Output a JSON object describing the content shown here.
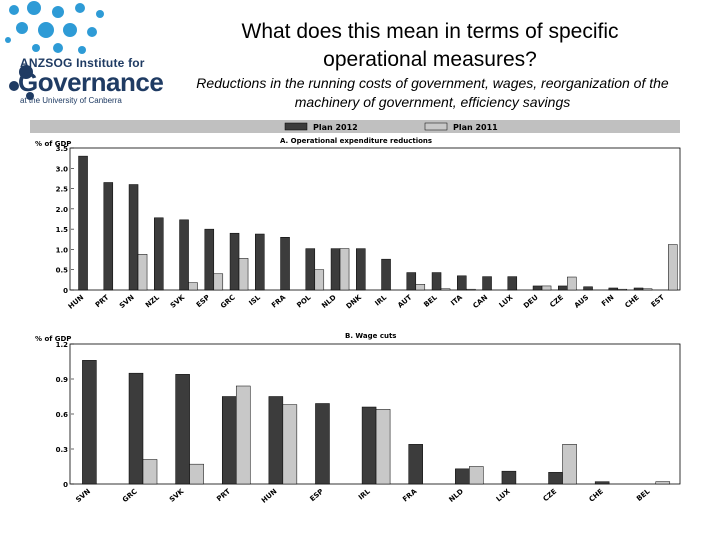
{
  "logo": {
    "name": "ANZSOG Institute for",
    "big": "Governance",
    "sub": "at the University of Canberra"
  },
  "header": {
    "title": "What does this mean in terms of specific operational measures?",
    "subtitle": "Reductions in the running costs of government, wages, reorganization of the machinery of government, efficiency savings"
  },
  "legend": {
    "plan2012": "Plan 2012",
    "plan2011": "Plan 2011"
  },
  "colors": {
    "plan2012": "#3c3c3c",
    "plan2011": "#c8c8c8",
    "header_bar": "#c0c0c0"
  },
  "chart_data": [
    {
      "type": "bar",
      "title": "A. Operational expenditure reductions",
      "ylabel": "% of GDP",
      "ylim": [
        0,
        3.5
      ],
      "yticks": [
        0,
        0.5,
        1.0,
        1.5,
        2.0,
        2.5,
        3.0,
        3.5
      ],
      "ytick_labels": [
        "0",
        "0.5",
        "1.0",
        "1.5",
        "2.0",
        "2.5",
        "3.0",
        "3.5"
      ],
      "categories": [
        "HUN",
        "PRT",
        "SVN",
        "NZL",
        "SVK",
        "ESP",
        "GRC",
        "ISL",
        "FRA",
        "POL",
        "NLD",
        "DNK",
        "IRL",
        "AUT",
        "BEL",
        "ITA",
        "CAN",
        "LUX",
        "DEU",
        "CZE",
        "AUS",
        "FIN",
        "CHE",
        "EST"
      ],
      "series": [
        {
          "name": "Plan 2012",
          "values": [
            3.3,
            2.65,
            2.6,
            1.78,
            1.73,
            1.5,
            1.4,
            1.38,
            1.3,
            1.02,
            1.02,
            1.02,
            0.76,
            0.43,
            0.43,
            0.35,
            0.33,
            0.33,
            0.1,
            0.1,
            0.08,
            0.05,
            0.05,
            0.0
          ]
        },
        {
          "name": "Plan 2011",
          "values": [
            0,
            0,
            0.88,
            0,
            0.18,
            0.4,
            0.78,
            0,
            0,
            0.5,
            1.02,
            0,
            0,
            0.14,
            0.03,
            0.02,
            0,
            0,
            0.1,
            0.32,
            0,
            0.02,
            0.03,
            1.12
          ]
        }
      ]
    },
    {
      "type": "bar",
      "title": "B. Wage cuts",
      "ylabel": "% of GDP",
      "ylim": [
        0,
        1.2
      ],
      "yticks": [
        0,
        0.3,
        0.6,
        0.9,
        1.2
      ],
      "ytick_labels": [
        "0",
        "0.3",
        "0.6",
        "0.9",
        "1.2"
      ],
      "categories": [
        "SVN",
        "GRC",
        "SVK",
        "PRT",
        "HUN",
        "ESP",
        "IRL",
        "FRA",
        "NLD",
        "LUX",
        "CZE",
        "CHE",
        "BEL"
      ],
      "series": [
        {
          "name": "Plan 2012",
          "values": [
            1.06,
            0.95,
            0.94,
            0.75,
            0.75,
            0.69,
            0.66,
            0.34,
            0.13,
            0.11,
            0.1,
            0.02,
            0.0
          ]
        },
        {
          "name": "Plan 2011",
          "values": [
            0,
            0.21,
            0.17,
            0.84,
            0.68,
            0,
            0.64,
            0,
            0.15,
            0,
            0.34,
            0,
            0.02
          ]
        }
      ]
    }
  ]
}
